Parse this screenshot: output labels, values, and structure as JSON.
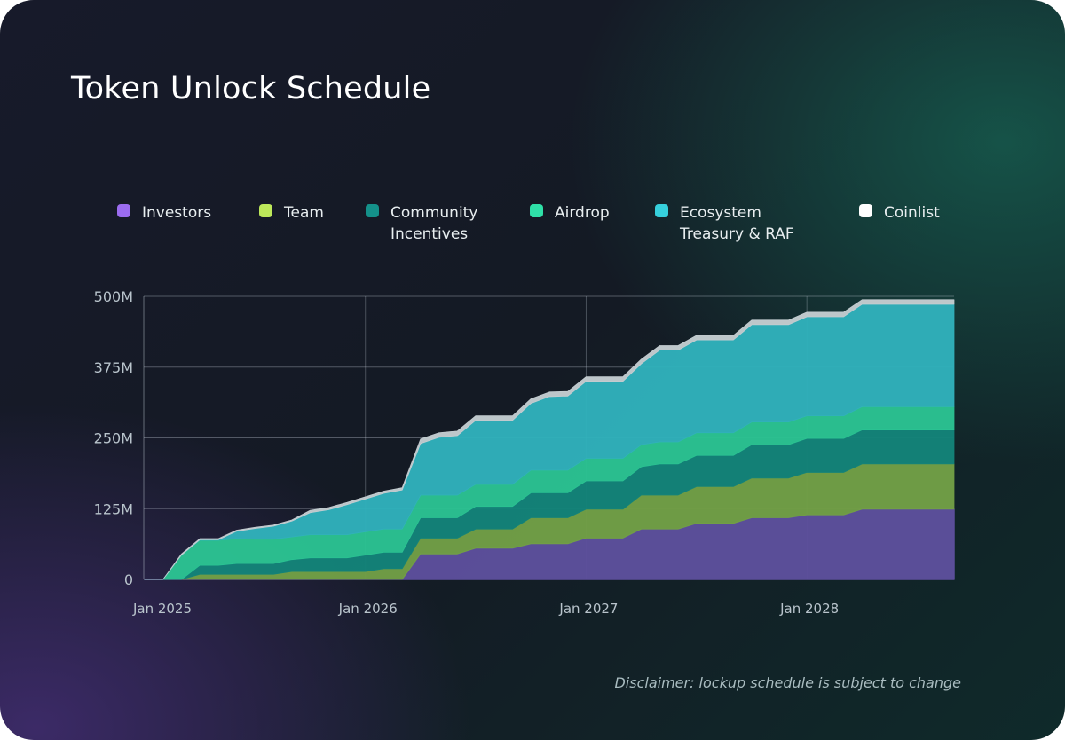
{
  "title": "Token Unlock Schedule",
  "disclaimer": "Disclaimer: lockup schedule is subject to change",
  "legend": [
    {
      "label": "Investors",
      "color": "#9b6cf0"
    },
    {
      "label": "Team",
      "color": "#bde85a"
    },
    {
      "label": "Community\nIncentives",
      "color": "#14918a"
    },
    {
      "label": "Airdrop",
      "color": "#2fe0a8"
    },
    {
      "label": "Ecosystem\nTreasury & RAF",
      "color": "#36d0dc"
    },
    {
      "label": "Coinlist",
      "color": "#ffffff"
    }
  ],
  "chart_data": {
    "type": "area",
    "stacked": true,
    "title": "Token Unlock Schedule",
    "xlabel": "",
    "ylabel": "",
    "x_start": "2025-01",
    "x_step": "month",
    "x_ticks": [
      "Jan 2025",
      "Jan 2026",
      "Jan 2027",
      "Jan 2028"
    ],
    "y_ticks": [
      "0",
      "125M",
      "250M",
      "375M",
      "500M"
    ],
    "ylim": [
      0,
      500
    ],
    "y_unit": "M tokens",
    "grid": true,
    "legend_position": "top",
    "series": [
      {
        "name": "Investors",
        "fill": "#5d4f9c",
        "values": [
          0,
          0,
          0,
          0,
          0,
          0,
          0,
          0,
          0,
          0,
          0,
          0,
          0,
          0,
          0,
          45,
          45,
          45,
          55,
          55,
          55,
          63,
          63,
          63,
          73,
          73,
          73,
          89,
          89,
          89,
          99,
          99,
          99,
          109,
          109,
          109,
          114,
          114,
          114,
          124,
          124,
          124,
          124,
          124,
          124
        ]
      },
      {
        "name": "Team",
        "fill": "#729f46",
        "values": [
          0,
          0,
          0,
          9,
          9,
          9,
          9,
          9,
          14,
          14,
          14,
          14,
          14,
          19,
          19,
          28,
          28,
          28,
          34,
          34,
          34,
          46,
          46,
          46,
          51,
          51,
          51,
          60,
          60,
          60,
          65,
          65,
          65,
          70,
          70,
          70,
          75,
          75,
          75,
          80,
          80,
          80,
          80,
          80,
          80
        ]
      },
      {
        "name": "Community Incentives",
        "fill": "#148379",
        "values": [
          0,
          0,
          0,
          16,
          16,
          19,
          19,
          19,
          21,
          24,
          24,
          24,
          29,
          29,
          29,
          36,
          36,
          36,
          40,
          40,
          40,
          44,
          44,
          44,
          50,
          50,
          50,
          50,
          55,
          55,
          55,
          55,
          55,
          59,
          59,
          59,
          60,
          60,
          60,
          60,
          60,
          60,
          60,
          60,
          60
        ]
      },
      {
        "name": "Airdrop",
        "fill": "#2bc292",
        "values": [
          0,
          0,
          43,
          44,
          44,
          44,
          43,
          43,
          40,
          41,
          41,
          41,
          41,
          41,
          41,
          40,
          40,
          40,
          39,
          39,
          39,
          40,
          40,
          40,
          40,
          40,
          40,
          39,
          39,
          39,
          40,
          40,
          40,
          40,
          40,
          40,
          40,
          40,
          40,
          41,
          41,
          41,
          41,
          41,
          41
        ]
      },
      {
        "name": "Ecosystem Treasury & RAF",
        "fill": "#31b1bb",
        "values": [
          0,
          0,
          0,
          1,
          1,
          13,
          19,
          23,
          28,
          39,
          44,
          53,
          58,
          63,
          69,
          91,
          102,
          105,
          113,
          113,
          113,
          118,
          130,
          131,
          136,
          136,
          136,
          143,
          162,
          162,
          164,
          164,
          164,
          172,
          172,
          172,
          175,
          175,
          175,
          181,
          181,
          181,
          181,
          181,
          181
        ]
      },
      {
        "name": "Coinlist",
        "fill": "#c3ccd0",
        "values": [
          0,
          0,
          2,
          2,
          2,
          2,
          2,
          2,
          2,
          4,
          4,
          4,
          4,
          4,
          4,
          8,
          8,
          8,
          8,
          8,
          8,
          8,
          8,
          8,
          8,
          8,
          8,
          8,
          8,
          8,
          8,
          8,
          8,
          8,
          8,
          8,
          8,
          8,
          8,
          8,
          8,
          8,
          8,
          8,
          8
        ]
      }
    ]
  }
}
